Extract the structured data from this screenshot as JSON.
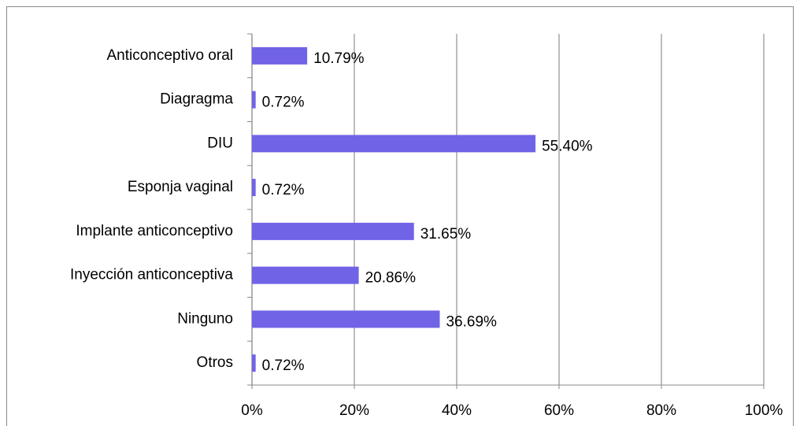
{
  "chart_data": {
    "type": "barh",
    "categories": [
      "Anticonceptivo oral",
      "Diagragma",
      "DIU",
      "Esponja vaginal",
      "Implante anticonceptivo",
      "Inyección anticonceptiva",
      "Ninguno",
      "Otros"
    ],
    "values": [
      10.79,
      0.72,
      55.4,
      0.72,
      31.65,
      20.86,
      36.69,
      0.72
    ],
    "value_labels": [
      "10.79%",
      "0.72%",
      "55.40%",
      "0.72%",
      "31.65%",
      "20.86%",
      "36.69%",
      "0.72%"
    ],
    "color": "#7163e6",
    "xlim": [
      0,
      100
    ],
    "xticks": [
      {
        "value": 0,
        "label": "0%"
      },
      {
        "value": 20,
        "label": "20%"
      },
      {
        "value": 40,
        "label": "40%"
      },
      {
        "value": 60,
        "label": "60%"
      },
      {
        "value": 80,
        "label": "80%"
      },
      {
        "value": 100,
        "label": "100%"
      }
    ],
    "grid": true
  }
}
